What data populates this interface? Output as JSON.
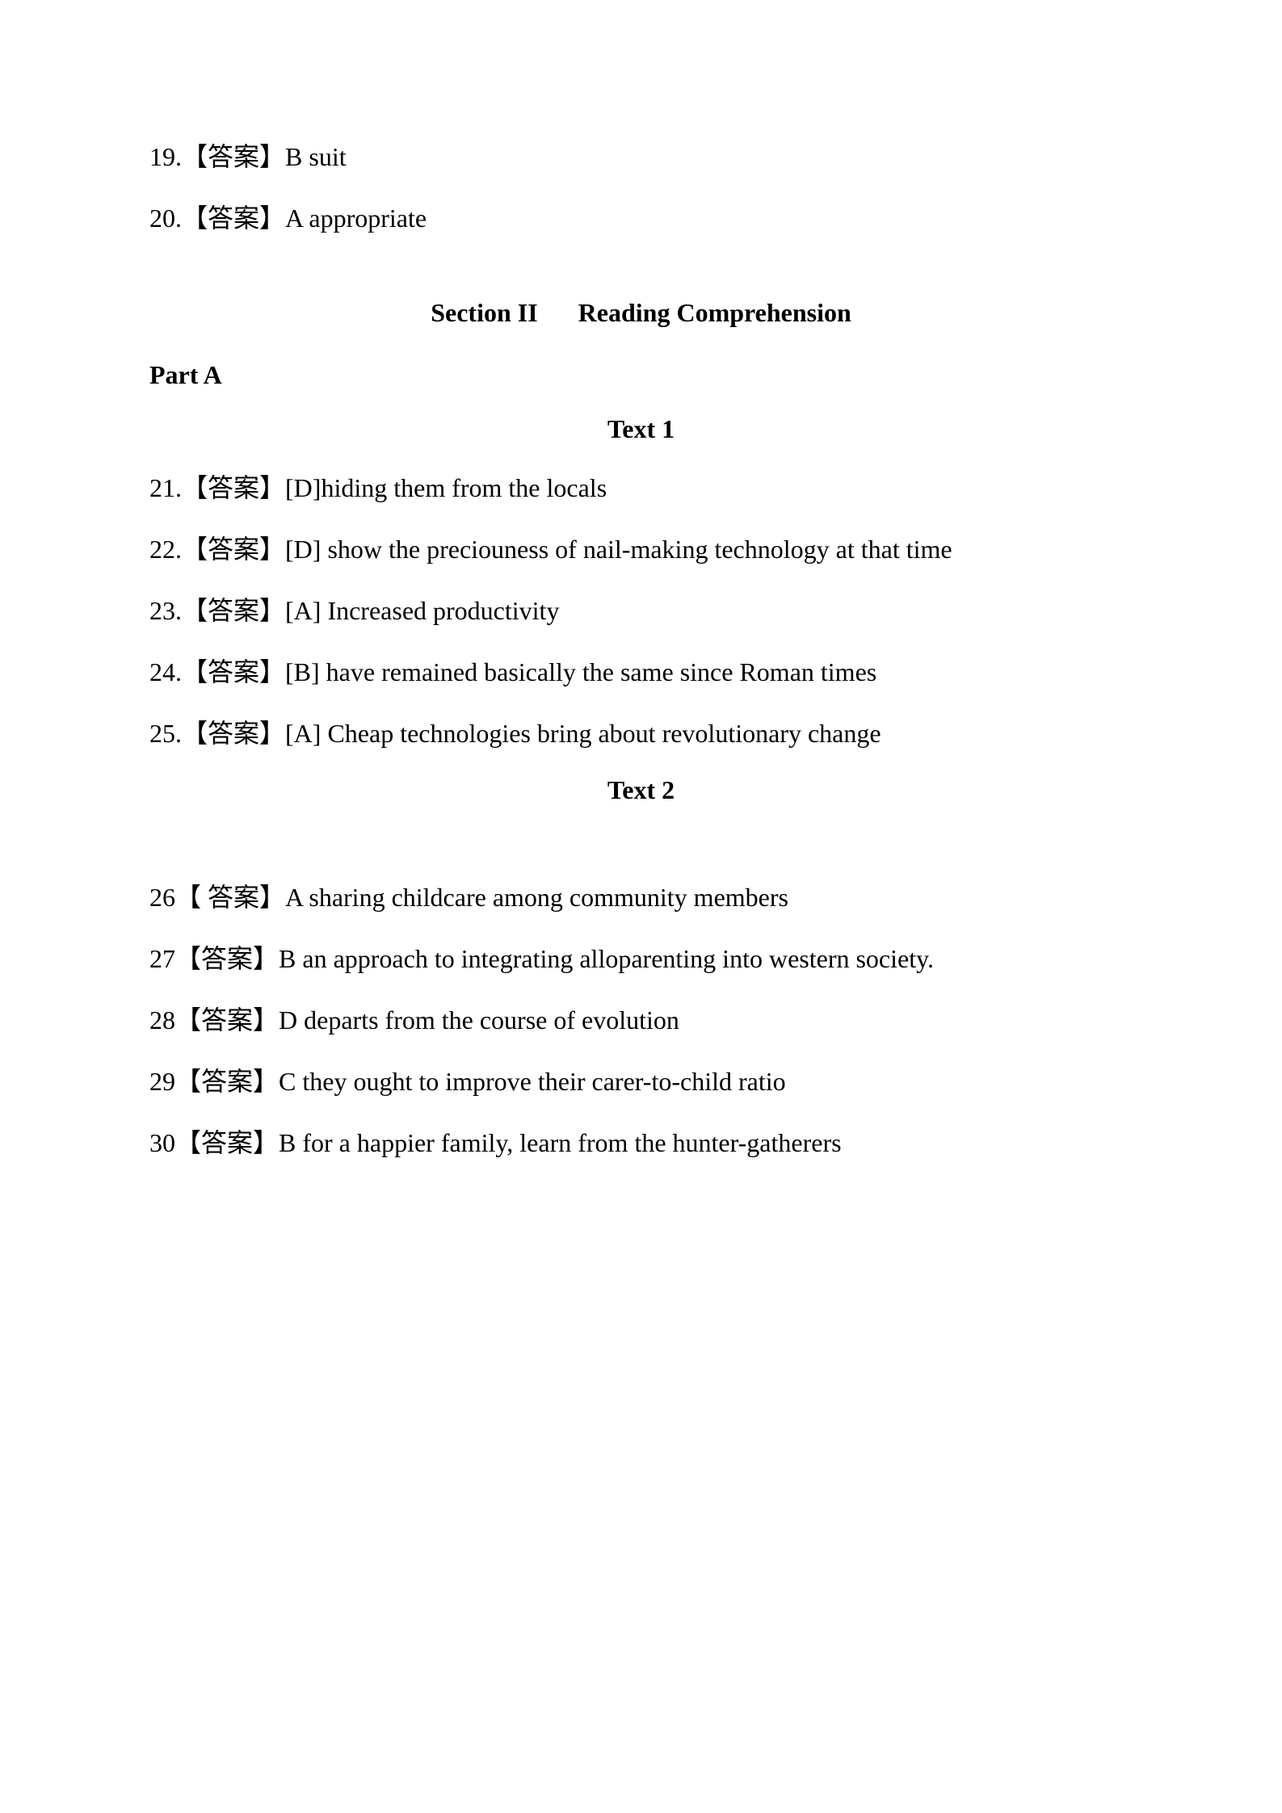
{
  "intro_answers": [
    {
      "num": "19.",
      "tag": "【答案】",
      "text": "B suit"
    },
    {
      "num": "20.",
      "tag": "【答案】",
      "text": "A appropriate"
    }
  ],
  "section_title_left": "Section II",
  "section_title_right": "Reading Comprehension",
  "part_a_label": "Part A",
  "text1_label": "Text 1",
  "text1_answers": [
    {
      "num": "21.",
      "tag": "【答案】",
      "text": "[D]hiding them from the locals"
    },
    {
      "num": "22.",
      "tag": "【答案】",
      "text": "[D] show the preciouness of nail-making technology at that time"
    },
    {
      "num": "23.",
      "tag": "【答案】",
      "text": "[A] Increased productivity"
    },
    {
      "num": "24.",
      "tag": "【答案】",
      "text": "[B] have remained basically the same since Roman times"
    },
    {
      "num": "25.",
      "tag": "【答案】",
      "text": "[A] Cheap technologies bring about revolutionary change"
    }
  ],
  "text2_label": "Text 2",
  "text2_answers": [
    {
      "num": "26",
      "tag": "【 答案】",
      "text": "A sharing childcare among community members"
    },
    {
      "num": "27",
      "tag": "【答案】",
      "text": "B an approach to integrating alloparenting into western society."
    },
    {
      "num": "28",
      "tag": "【答案】",
      "text": "D departs from the course of evolution"
    },
    {
      "num": "29",
      "tag": "【答案】",
      "text": "C they ought to improve their carer-to-child ratio"
    },
    {
      "num": "30",
      "tag": "【答案】",
      "text": "B for a happier family, learn from the hunter-gatherers"
    }
  ]
}
